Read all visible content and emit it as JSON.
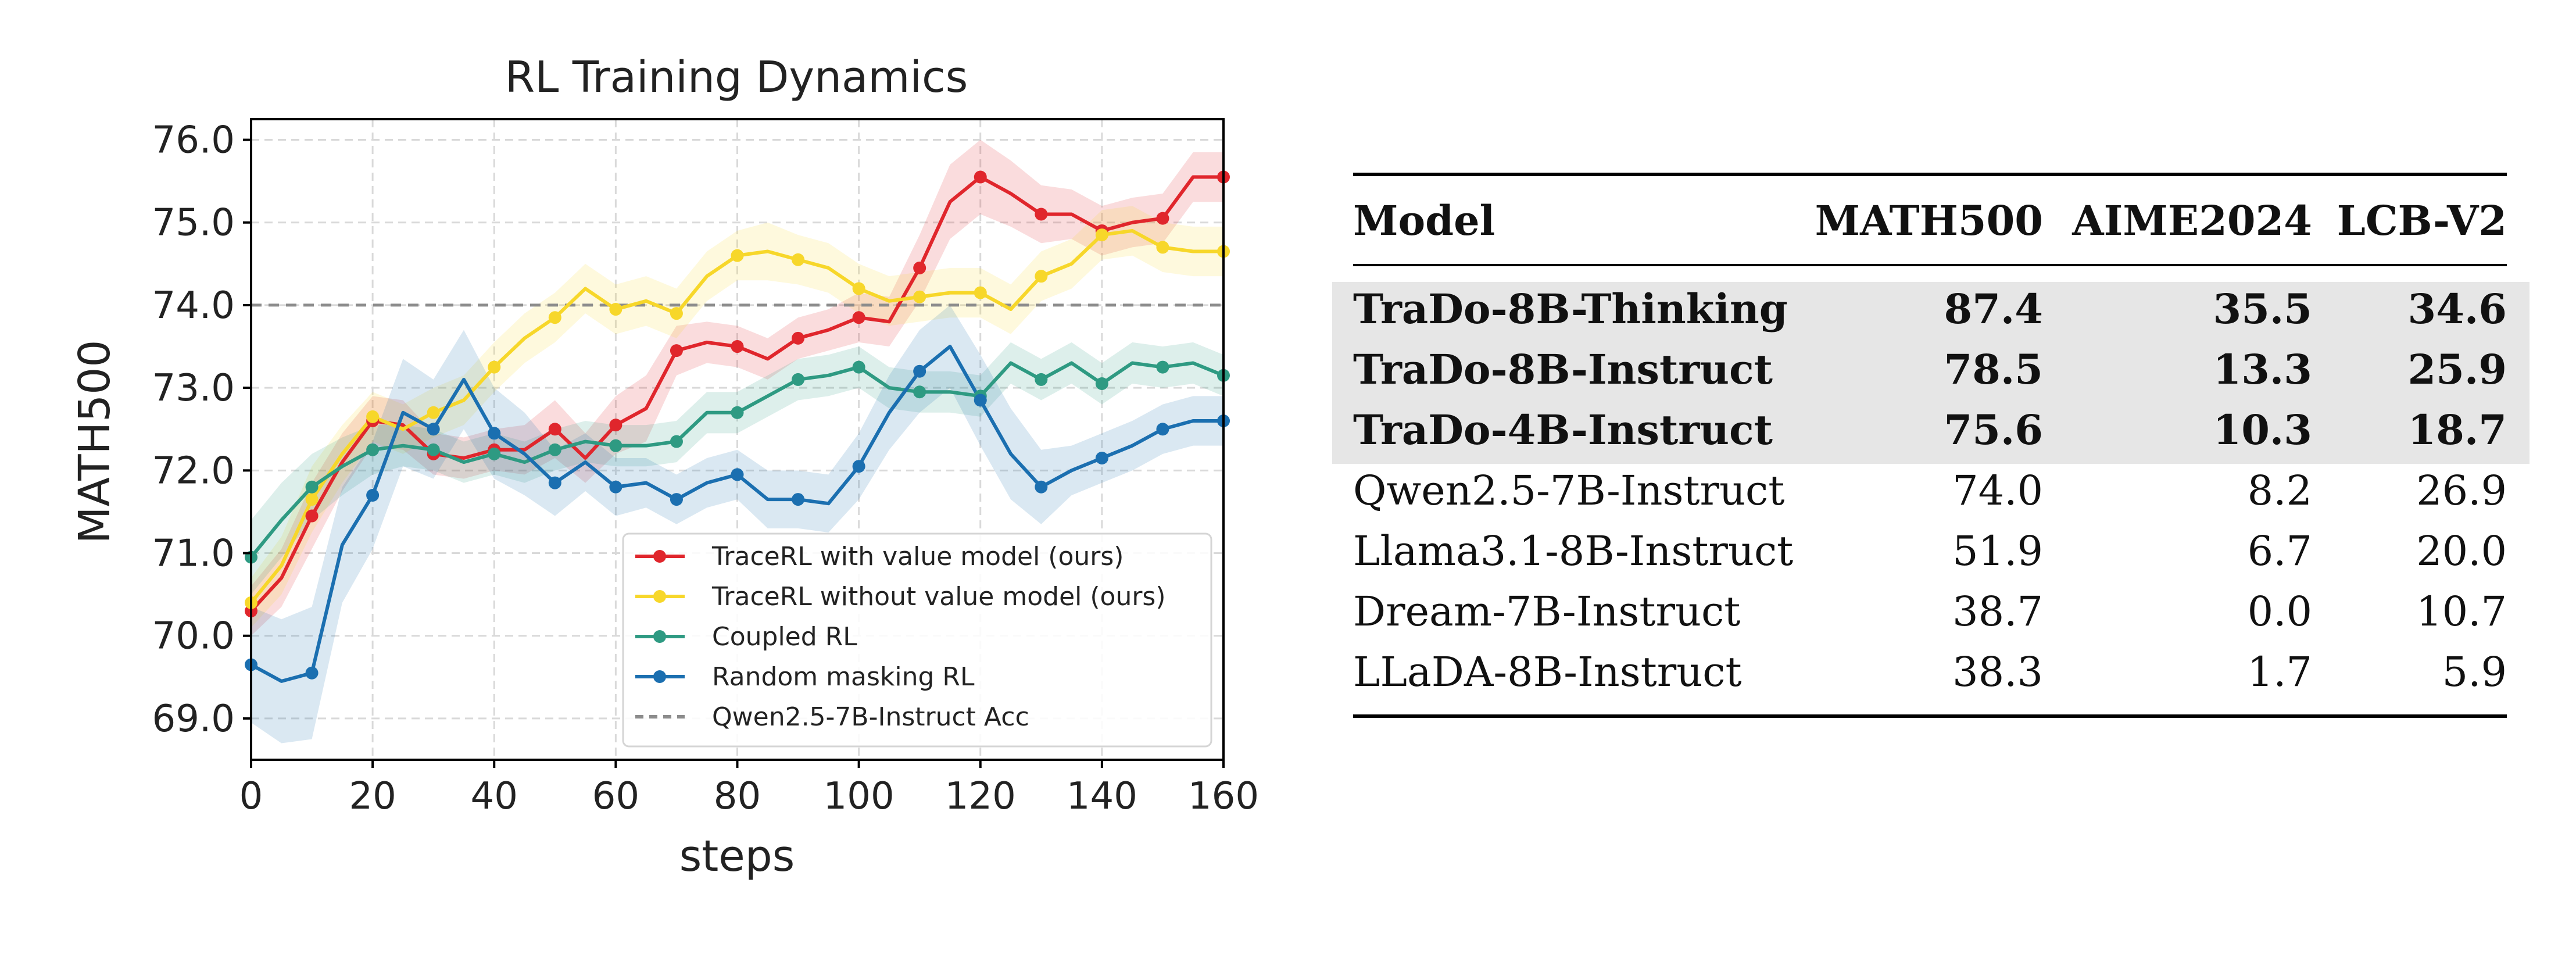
{
  "chart_data": [
    {
      "type": "line",
      "title": "RL Training Dynamics",
      "xlabel": "steps",
      "ylabel": "MATH500",
      "xlim": [
        0,
        160
      ],
      "ylim": [
        68.5,
        76.25
      ],
      "xticks": [
        0,
        20,
        40,
        60,
        80,
        100,
        120,
        140,
        160
      ],
      "yticks": [
        69.0,
        70.0,
        71.0,
        72.0,
        73.0,
        74.0,
        75.0,
        76.0
      ],
      "grid": true,
      "legend_position": "lower-right",
      "series": [
        {
          "name": "TraceRL with value model (ours)",
          "color": "#e0262c",
          "x": [
            0,
            5,
            10,
            15,
            20,
            25,
            30,
            35,
            40,
            45,
            50,
            55,
            60,
            65,
            70,
            75,
            80,
            85,
            90,
            95,
            100,
            105,
            110,
            115,
            120,
            125,
            130,
            135,
            140,
            145,
            150,
            155,
            160
          ],
          "y": [
            70.3,
            70.7,
            71.45,
            72.1,
            72.6,
            72.55,
            72.2,
            72.15,
            72.25,
            72.25,
            72.5,
            72.15,
            72.55,
            72.75,
            73.45,
            73.55,
            73.5,
            73.35,
            73.6,
            73.7,
            73.85,
            73.8,
            74.45,
            75.25,
            75.55,
            75.35,
            75.1,
            75.1,
            74.9,
            75.0,
            75.05,
            75.55,
            75.55
          ],
          "band": [
            0.3,
            0.35,
            0.4,
            0.35,
            0.3,
            0.3,
            0.25,
            0.25,
            0.25,
            0.3,
            0.35,
            0.3,
            0.35,
            0.4,
            0.3,
            0.25,
            0.25,
            0.25,
            0.25,
            0.25,
            0.3,
            0.3,
            0.4,
            0.45,
            0.45,
            0.4,
            0.35,
            0.3,
            0.3,
            0.3,
            0.3,
            0.3,
            0.3
          ]
        },
        {
          "name": "TraceRL without value model (ours)",
          "color": "#f7d72a",
          "x": [
            0,
            5,
            10,
            15,
            20,
            25,
            30,
            35,
            40,
            45,
            50,
            55,
            60,
            65,
            70,
            75,
            80,
            85,
            90,
            95,
            100,
            105,
            110,
            115,
            120,
            125,
            130,
            135,
            140,
            145,
            150,
            155,
            160
          ],
          "y": [
            70.4,
            70.85,
            71.65,
            72.2,
            72.65,
            72.5,
            72.7,
            72.85,
            73.25,
            73.6,
            73.85,
            74.2,
            73.95,
            74.05,
            73.9,
            74.35,
            74.6,
            74.65,
            74.55,
            74.45,
            74.2,
            74.05,
            74.1,
            74.15,
            74.15,
            73.95,
            74.35,
            74.5,
            74.85,
            74.9,
            74.7,
            74.65,
            74.65
          ],
          "band": [
            0.3,
            0.35,
            0.4,
            0.35,
            0.3,
            0.3,
            0.3,
            0.3,
            0.3,
            0.3,
            0.3,
            0.3,
            0.3,
            0.3,
            0.3,
            0.3,
            0.3,
            0.35,
            0.3,
            0.3,
            0.3,
            0.3,
            0.3,
            0.3,
            0.3,
            0.3,
            0.3,
            0.3,
            0.3,
            0.3,
            0.3,
            0.3,
            0.3
          ]
        },
        {
          "name": "Coupled RL",
          "color": "#2e9a82",
          "x": [
            0,
            5,
            10,
            15,
            20,
            25,
            30,
            35,
            40,
            45,
            50,
            55,
            60,
            65,
            70,
            75,
            80,
            85,
            90,
            95,
            100,
            105,
            110,
            115,
            120,
            125,
            130,
            135,
            140,
            145,
            150,
            155,
            160
          ],
          "y": [
            70.95,
            71.4,
            71.8,
            72.05,
            72.25,
            72.3,
            72.25,
            72.1,
            72.2,
            72.1,
            72.25,
            72.35,
            72.3,
            72.3,
            72.35,
            72.7,
            72.7,
            72.9,
            73.1,
            73.15,
            73.25,
            73.0,
            72.95,
            72.95,
            72.9,
            73.3,
            73.1,
            73.3,
            73.05,
            73.3,
            73.25,
            73.3,
            73.15
          ],
          "band": [
            0.45,
            0.45,
            0.4,
            0.35,
            0.3,
            0.25,
            0.25,
            0.25,
            0.25,
            0.25,
            0.25,
            0.25,
            0.25,
            0.25,
            0.25,
            0.25,
            0.25,
            0.25,
            0.25,
            0.25,
            0.25,
            0.25,
            0.25,
            0.25,
            0.25,
            0.25,
            0.25,
            0.25,
            0.25,
            0.25,
            0.25,
            0.25,
            0.25
          ]
        },
        {
          "name": "Random masking RL",
          "color": "#1b6fb0",
          "x": [
            0,
            5,
            10,
            15,
            20,
            25,
            30,
            35,
            40,
            45,
            50,
            55,
            60,
            65,
            70,
            75,
            80,
            85,
            90,
            95,
            100,
            105,
            110,
            115,
            120,
            125,
            130,
            135,
            140,
            145,
            150,
            155,
            160
          ],
          "y": [
            69.65,
            69.45,
            69.55,
            71.1,
            71.7,
            72.7,
            72.5,
            73.1,
            72.45,
            72.2,
            71.85,
            72.1,
            71.8,
            71.85,
            71.65,
            71.85,
            71.95,
            71.65,
            71.65,
            71.6,
            72.05,
            72.7,
            73.2,
            73.5,
            72.85,
            72.2,
            71.8,
            72.0,
            72.15,
            72.3,
            72.5,
            72.6,
            72.6
          ],
          "band": [
            0.7,
            0.75,
            0.8,
            0.7,
            0.65,
            0.65,
            0.6,
            0.6,
            0.55,
            0.5,
            0.4,
            0.35,
            0.35,
            0.3,
            0.3,
            0.3,
            0.3,
            0.35,
            0.35,
            0.35,
            0.4,
            0.45,
            0.5,
            0.5,
            0.55,
            0.55,
            0.45,
            0.3,
            0.3,
            0.3,
            0.3,
            0.3,
            0.3
          ]
        }
      ],
      "reference_line": {
        "name": "Qwen2.5-7B-Instruct Acc",
        "y": 74.0,
        "color": "#8c8c8c",
        "style": "dashed"
      }
    },
    {
      "type": "table",
      "columns": [
        "Model",
        "MATH500",
        "AIME2024",
        "LCB-V2"
      ],
      "rows": [
        {
          "cells": [
            "TraDo-8B-Thinking",
            "87.4",
            "35.5",
            "34.6"
          ],
          "bold": true,
          "highlight": true
        },
        {
          "cells": [
            "TraDo-8B-Instruct",
            "78.5",
            "13.3",
            "25.9"
          ],
          "bold": true,
          "highlight": true
        },
        {
          "cells": [
            "TraDo-4B-Instruct",
            "75.6",
            "10.3",
            "18.7"
          ],
          "bold": true,
          "highlight": true
        },
        {
          "cells": [
            "Qwen2.5-7B-Instruct",
            "74.0",
            "8.2",
            "26.9"
          ],
          "bold": false,
          "highlight": false
        },
        {
          "cells": [
            "Llama3.1-8B-Instruct",
            "51.9",
            "6.7",
            "20.0"
          ],
          "bold": false,
          "highlight": false
        },
        {
          "cells": [
            "Dream-7B-Instruct",
            "38.7",
            "0.0",
            "10.7"
          ],
          "bold": false,
          "highlight": false
        },
        {
          "cells": [
            "LLaDA-8B-Instruct",
            "38.3",
            "1.7",
            "5.9"
          ],
          "bold": false,
          "highlight": false
        }
      ],
      "highlight_color": "#e6e6e6"
    }
  ]
}
